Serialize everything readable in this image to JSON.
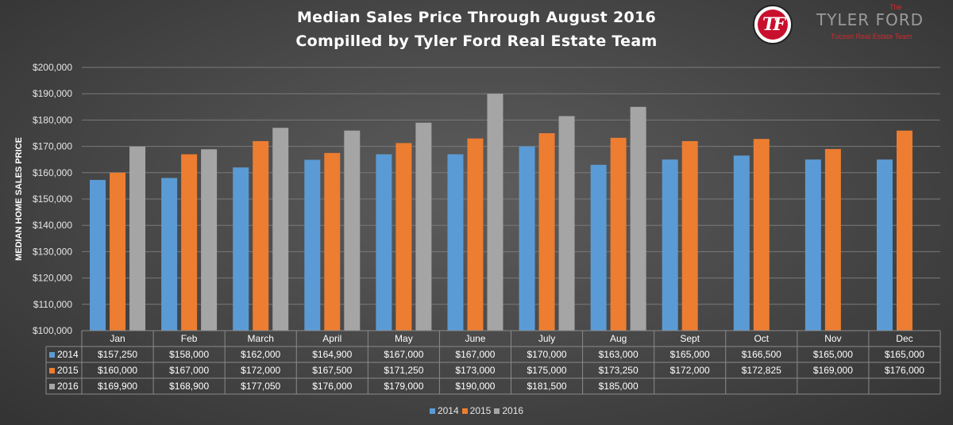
{
  "title": {
    "line1": "Median Sales Price Through August 2016",
    "line2": "Compilled by Tyler Ford Real Estate Team"
  },
  "logo": {
    "monogram": "TF",
    "the": "The",
    "name": "TYLER FORD",
    "tagline": "Tucson Real Estate Team"
  },
  "colors": {
    "2014": "#5b9bd5",
    "2015": "#ed7d31",
    "2016": "#a5a5a5"
  },
  "chart_data": {
    "type": "bar",
    "ylabel": "MEDIAN HOME SALES PRICE",
    "ylim": [
      100000,
      200000
    ],
    "yticks": [
      "$100,000",
      "$110,000",
      "$120,000",
      "$130,000",
      "$140,000",
      "$150,000",
      "$160,000",
      "$170,000",
      "$180,000",
      "$190,000",
      "$200,000"
    ],
    "grid": true,
    "legend_position": "bottom",
    "categories": [
      "Jan",
      "Feb",
      "March",
      "April",
      "May",
      "June",
      "July",
      "Aug",
      "Sept",
      "Oct",
      "Nov",
      "Dec"
    ],
    "series": [
      {
        "name": "2014",
        "values": [
          157250,
          158000,
          162000,
          164900,
          167000,
          167000,
          170000,
          163000,
          165000,
          166500,
          165000,
          165000
        ],
        "labels": [
          "$157,250",
          "$158,000",
          "$162,000",
          "$164,900",
          "$167,000",
          "$167,000",
          "$170,000",
          "$163,000",
          "$165,000",
          "$166,500",
          "$165,000",
          "$165,000"
        ]
      },
      {
        "name": "2015",
        "values": [
          160000,
          167000,
          172000,
          167500,
          171250,
          173000,
          175000,
          173250,
          172000,
          172825,
          169000,
          176000
        ],
        "labels": [
          "$160,000",
          "$167,000",
          "$172,000",
          "$167,500",
          "$171,250",
          "$173,000",
          "$175,000",
          "$173,250",
          "$172,000",
          "$172,825",
          "$169,000",
          "$176,000"
        ]
      },
      {
        "name": "2016",
        "values": [
          169900,
          168900,
          177050,
          176000,
          179000,
          190000,
          181500,
          185000,
          null,
          null,
          null,
          null
        ],
        "labels": [
          "$169,900",
          "$168,900",
          "$177,050",
          "$176,000",
          "$179,000",
          "$190,000",
          "$181,500",
          "$185,000",
          "",
          "",
          "",
          ""
        ]
      }
    ]
  }
}
